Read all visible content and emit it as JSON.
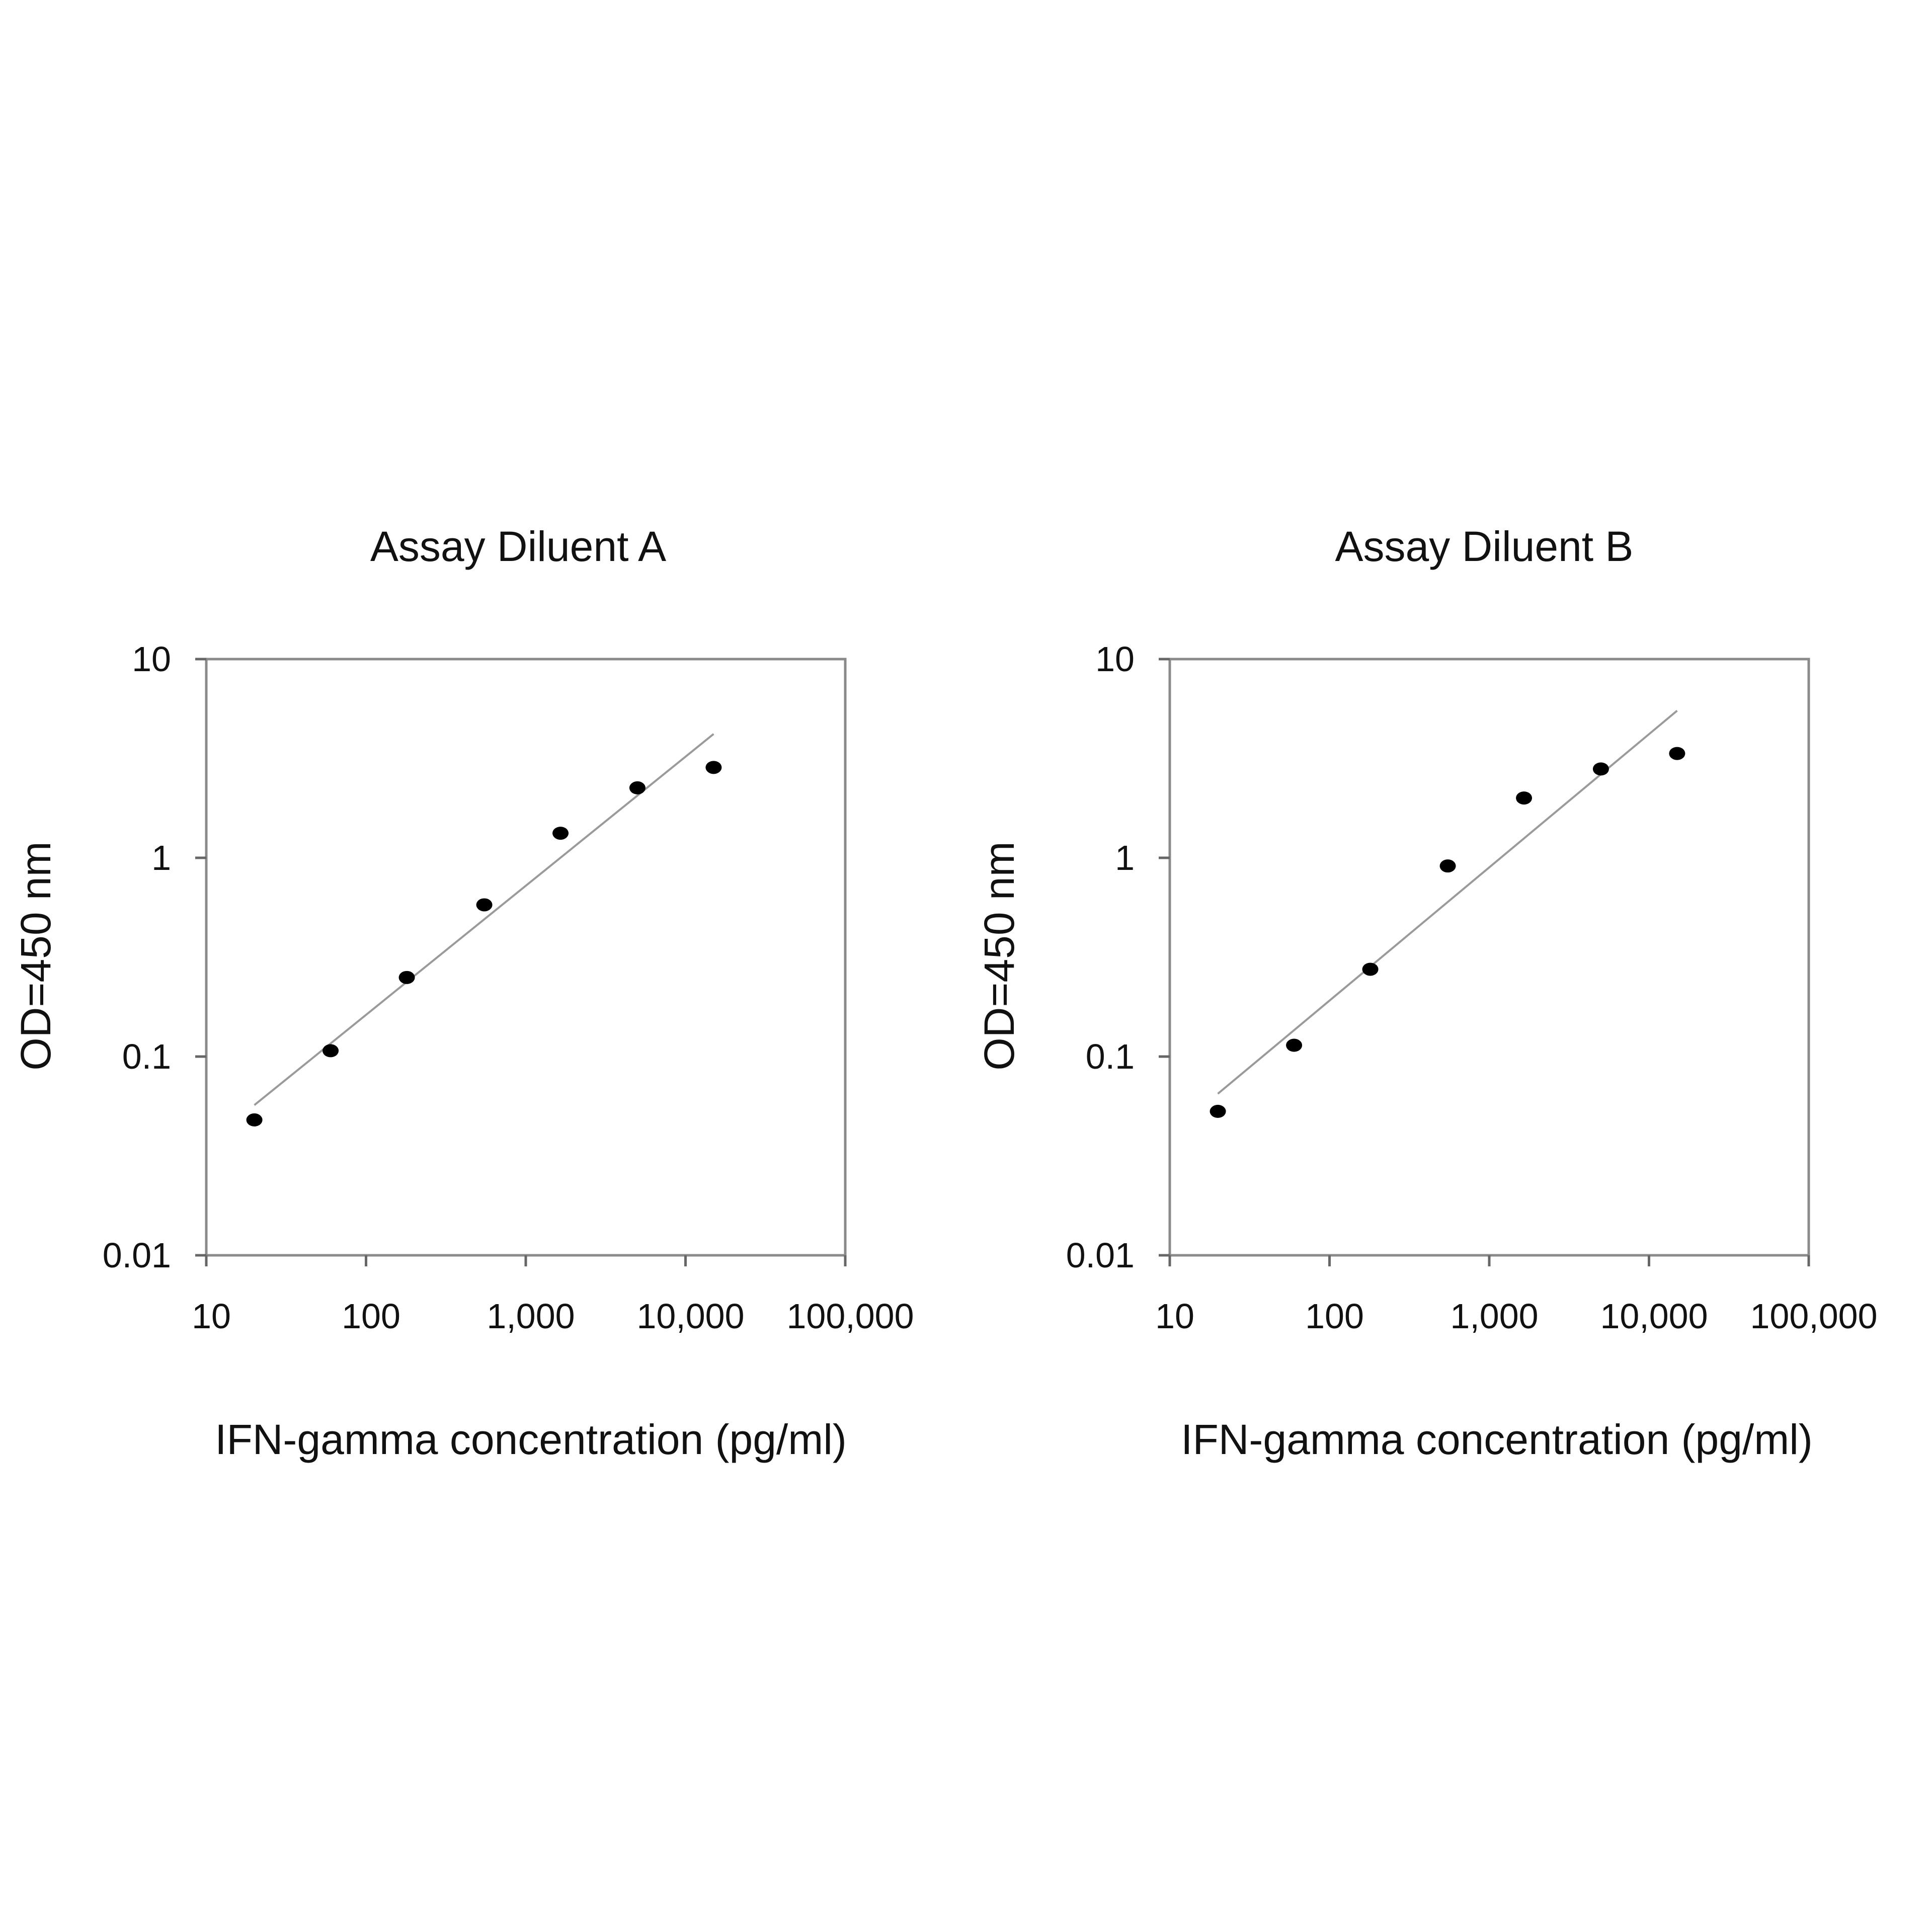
{
  "chart_data": [
    {
      "type": "scatter",
      "title": "Assay Diluent A",
      "xlabel": "IFN-gamma concentration (pg/ml)",
      "ylabel": "OD=450 nm",
      "xscale": "log",
      "yscale": "log",
      "xlim": [
        10,
        100000
      ],
      "ylim": [
        0.01,
        10
      ],
      "xticks": [
        "10",
        "100",
        "1,000",
        "10,000",
        "100,000"
      ],
      "yticks": [
        "10",
        "1",
        "0.1",
        "0.01"
      ],
      "grid": false,
      "legend": "none",
      "x": [
        20,
        60,
        180,
        550,
        1650,
        5000,
        15000
      ],
      "y": [
        0.048,
        0.107,
        0.25,
        0.58,
        1.33,
        2.25,
        2.85
      ],
      "trendline": {
        "x": [
          20,
          15000
        ],
        "y": [
          0.057,
          4.2
        ]
      }
    },
    {
      "type": "scatter",
      "title": "Assay Diluent B",
      "xlabel": "IFN-gamma concentration (pg/ml)",
      "ylabel": "OD=450 nm",
      "xscale": "log",
      "yscale": "log",
      "xlim": [
        10,
        100000
      ],
      "ylim": [
        0.01,
        10
      ],
      "xticks": [
        "10",
        "100",
        "1,000",
        "10,000",
        "100,000"
      ],
      "yticks": [
        "10",
        "1",
        "0.1",
        "0.01"
      ],
      "grid": false,
      "legend": "none",
      "x": [
        20,
        60,
        180,
        550,
        1650,
        5000,
        15000
      ],
      "y": [
        0.053,
        0.114,
        0.275,
        0.91,
        2.0,
        2.8,
        3.35
      ],
      "trendline": {
        "x": [
          20,
          15000
        ],
        "y": [
          0.065,
          5.5
        ]
      }
    }
  ]
}
